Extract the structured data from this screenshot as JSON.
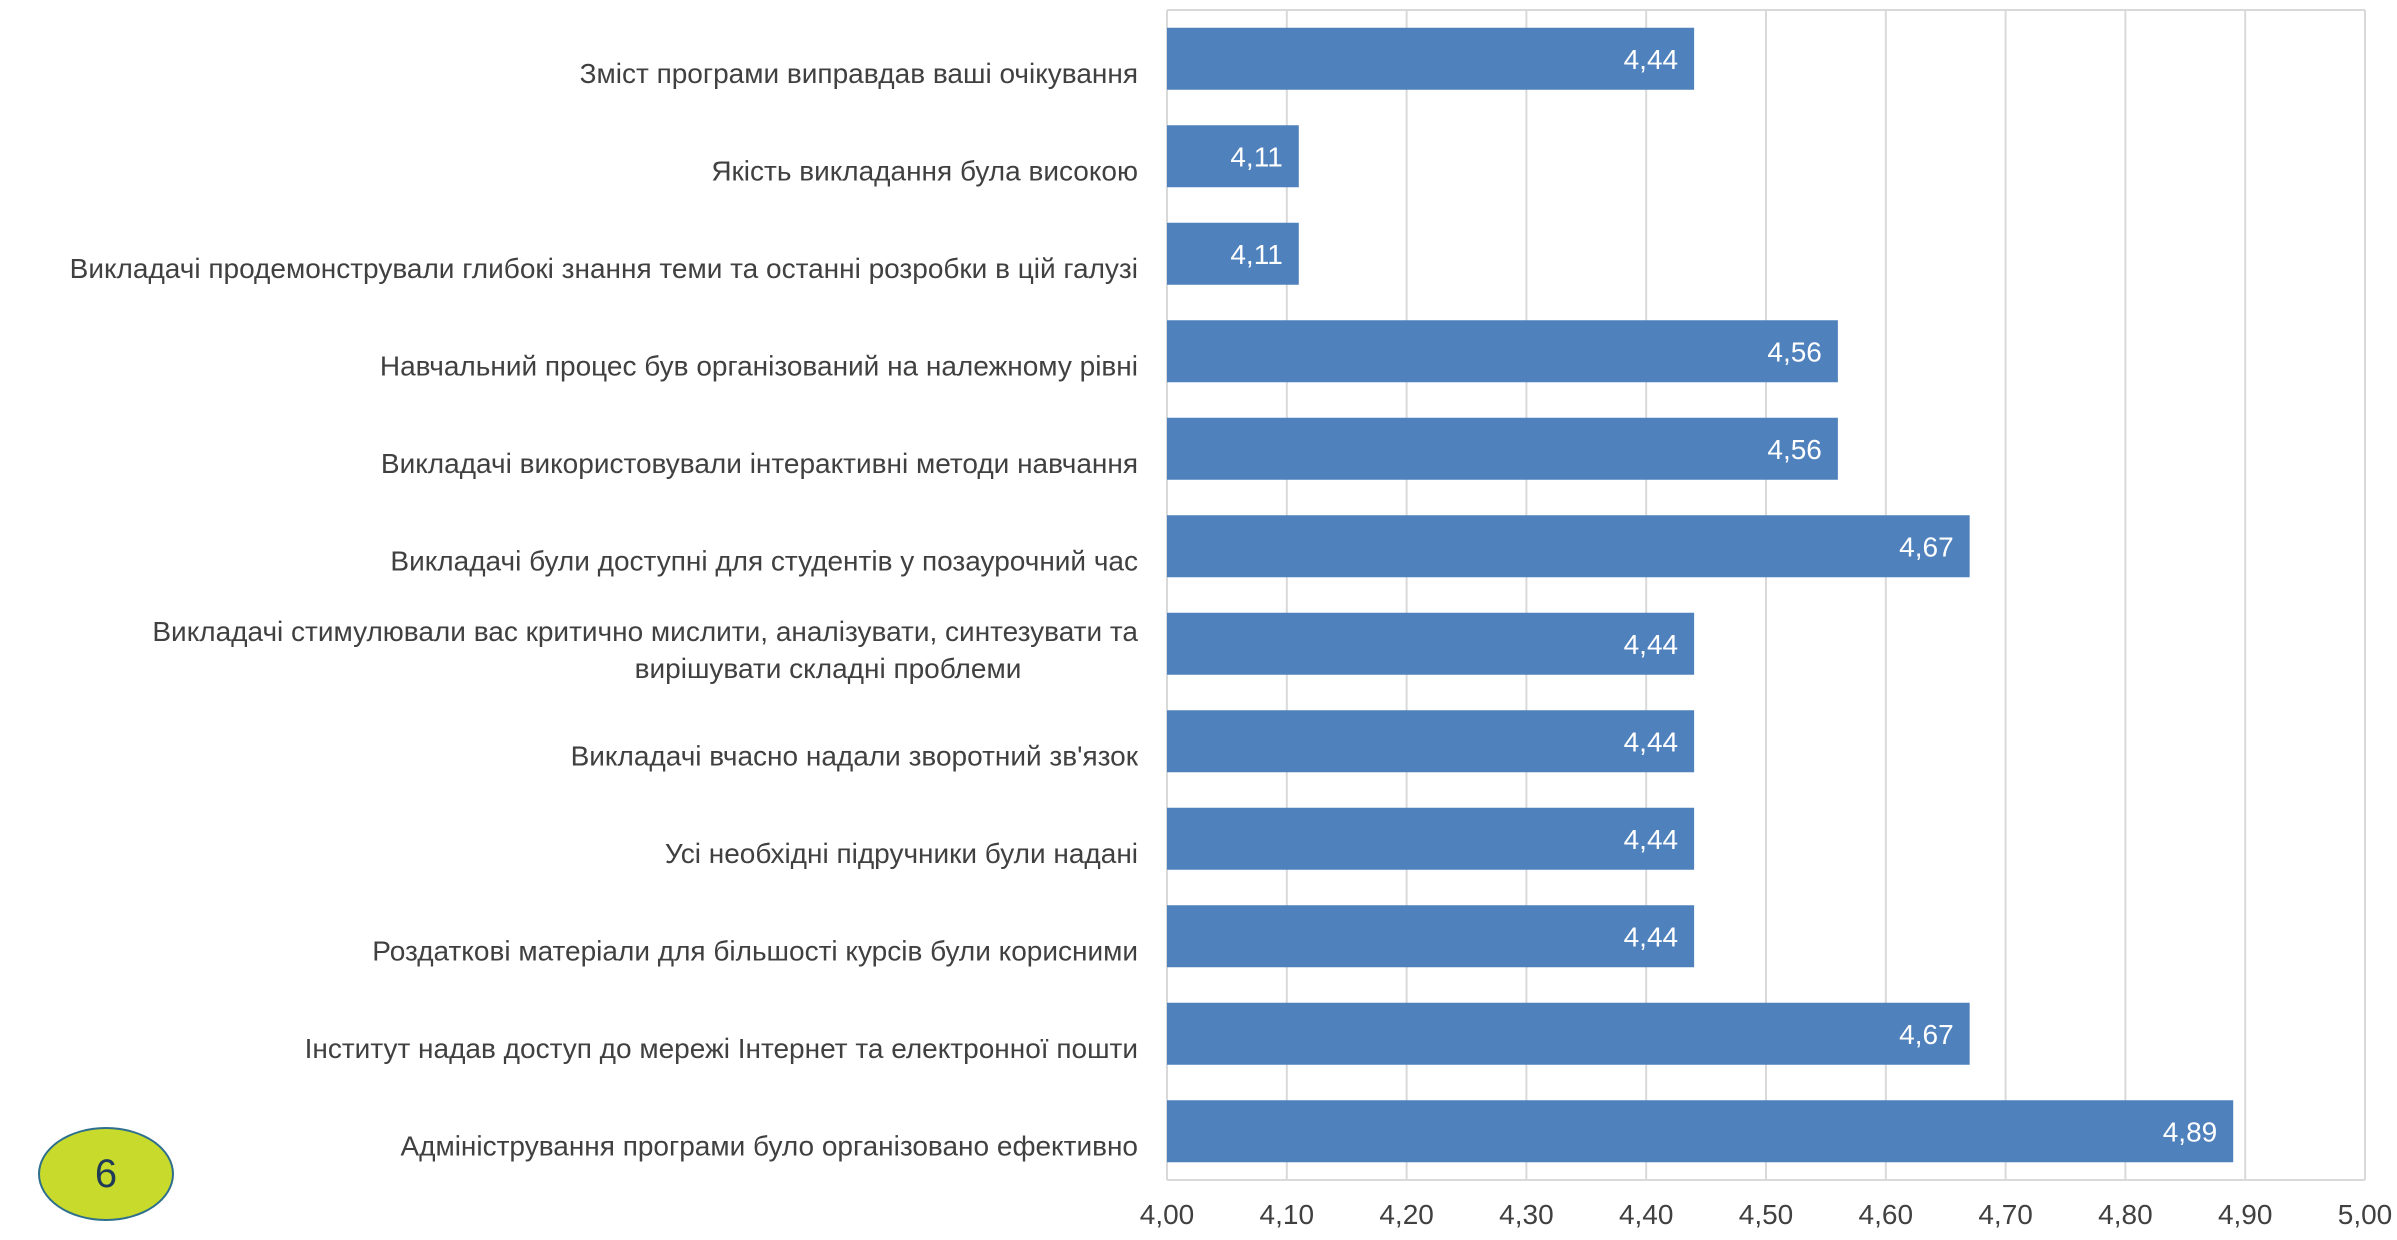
{
  "chart_data": {
    "type": "bar",
    "orientation": "horizontal",
    "categories": [
      "Зміст програми виправдав ваші очікування",
      "Якість викладання була високою",
      "Викладачі продемонстрували глибокі знання теми та останні розробки в цій галузі",
      "Навчальний процес був організований на належному рівні",
      "Викладачі використовували інтерактивні методи навчання",
      "Викладачі були доступні для студентів у позаурочний час",
      "Викладачі стимулювали вас критично мислити, аналізувати, синтезувати та вирішувати складні проблеми",
      "Викладачі вчасно надали зворотний зв'язок",
      "Усі необхідні підручники були надані",
      "Роздаткові матеріали для більшості курсів були корисними",
      "Інститут надав доступ до мережі Інтернет та електронної пошти",
      "Адміністрування програми було організовано ефективно"
    ],
    "category_lines": [
      [
        "Зміст програми виправдав ваші очікування"
      ],
      [
        "Якість викладання була високою"
      ],
      [
        "Викладачі продемонстрували глибокі знання теми та останні розробки в цій галузі"
      ],
      [
        "Навчальний процес був організований на належному рівні"
      ],
      [
        "Викладачі використовували інтерактивні методи навчання"
      ],
      [
        "Викладачі були доступні для студентів у позаурочний час"
      ],
      [
        "Викладачі стимулювали вас критично мислити, аналізувати, синтезувати та",
        "вирішувати складні проблеми"
      ],
      [
        "Викладачі вчасно надали зворотний зв'язок"
      ],
      [
        "Усі необхідні підручники були надані"
      ],
      [
        "Роздаткові матеріали для більшості курсів були корисними"
      ],
      [
        "Інститут надав доступ до мережі Інтернет та електронної пошти"
      ],
      [
        "Адміністрування програми було організовано ефективно"
      ]
    ],
    "values": [
      4.44,
      4.11,
      4.11,
      4.56,
      4.56,
      4.67,
      4.44,
      4.44,
      4.44,
      4.44,
      4.67,
      4.89
    ],
    "data_labels": [
      "4,44",
      "4,11",
      "4,11",
      "4,56",
      "4,56",
      "4,67",
      "4,44",
      "4,44",
      "4,44",
      "4,44",
      "4,67",
      "4,89"
    ],
    "xlim": [
      4.0,
      5.0
    ],
    "x_ticks": [
      4.0,
      4.1,
      4.2,
      4.3,
      4.4,
      4.5,
      4.6,
      4.7,
      4.8,
      4.9,
      5.0
    ],
    "x_tick_labels": [
      "4,00",
      "4,10",
      "4,20",
      "4,30",
      "4,40",
      "4,50",
      "4,60",
      "4,70",
      "4,80",
      "4,90",
      "5,00"
    ],
    "grid": true,
    "legend": false,
    "bar_color": "#4f81bd",
    "grid_color": "#d9d9d9",
    "title": "",
    "xlabel": "",
    "ylabel": ""
  },
  "page_badge": {
    "text": "6",
    "fill_color": "#c8da2b",
    "border_color": "#2e6f8e"
  }
}
